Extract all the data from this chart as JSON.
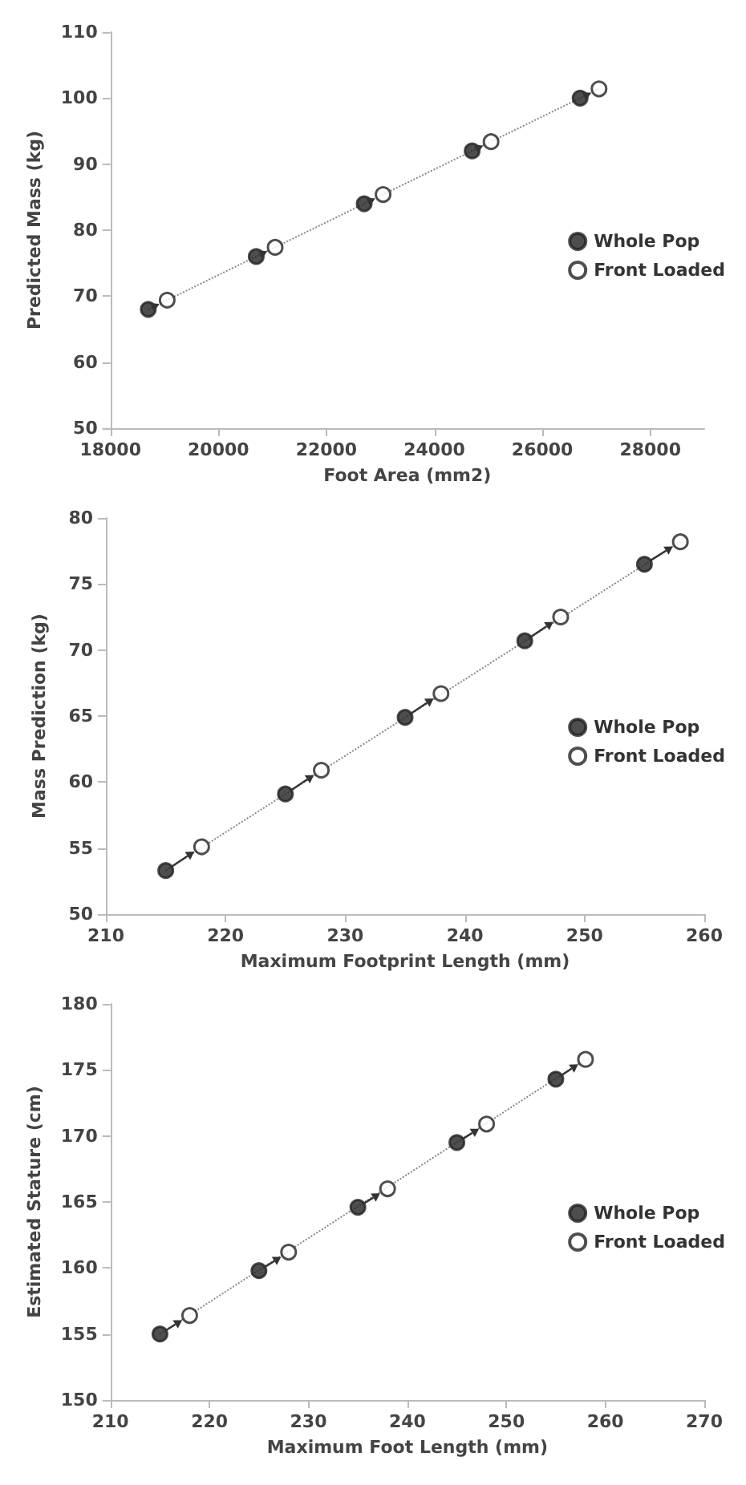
{
  "chart_data": [
    {
      "type": "scatter",
      "xlabel": "Foot Area (mm2)",
      "ylabel": "Predicted Mass (kg)",
      "xlim": [
        18000,
        29000
      ],
      "xticks": [
        18000,
        20000,
        22000,
        24000,
        26000,
        28000
      ],
      "ylim": [
        50,
        110
      ],
      "yticks": [
        50,
        60,
        70,
        80,
        90,
        100,
        110
      ],
      "grid": false,
      "legend": "right",
      "marker": "circle",
      "series": [
        {
          "name": "Whole Pop",
          "color": "#222222",
          "x": [
            18700,
            20700,
            22700,
            24700,
            26700
          ],
          "values": [
            68,
            76,
            84,
            92,
            100
          ]
        },
        {
          "name": "Front Loaded",
          "color": "#ffffff",
          "x": [
            19050,
            21050,
            23050,
            25050,
            27050
          ],
          "values": [
            69.4,
            77.4,
            85.4,
            93.4,
            101.4
          ]
        },
        {
          "type": "line",
          "color": "#888888",
          "line_style": "dotted",
          "marker": "none",
          "x": [
            18700,
            27050
          ],
          "values": [
            68,
            101.4
          ]
        }
      ]
    },
    {
      "type": "scatter",
      "xlabel": "Maximum Footprint Length (mm)",
      "ylabel": "Mass Prediction (kg)",
      "xlim": [
        210,
        260
      ],
      "xticks": [
        210,
        220,
        230,
        240,
        250,
        260
      ],
      "ylim": [
        50,
        80
      ],
      "yticks": [
        50,
        55,
        60,
        65,
        70,
        75,
        80
      ],
      "grid": false,
      "legend": "right",
      "marker": "circle",
      "series": [
        {
          "name": "Whole Pop",
          "color": "#222222",
          "x": [
            215,
            225,
            235,
            245,
            255
          ],
          "values": [
            53.3,
            59.1,
            64.9,
            70.7,
            76.5
          ]
        },
        {
          "name": "Front Loaded",
          "color": "#ffffff",
          "x": [
            218,
            228,
            238,
            248,
            258
          ],
          "values": [
            55.1,
            60.9,
            66.7,
            72.5,
            78.2
          ]
        },
        {
          "type": "line",
          "color": "#888888",
          "line_style": "dotted",
          "marker": "none",
          "x": [
            215,
            258
          ],
          "values": [
            53.3,
            78.2
          ]
        }
      ]
    },
    {
      "type": "scatter",
      "xlabel": "Maximum Foot Length (mm)",
      "ylabel": "Estimated Stature (cm)",
      "xlim": [
        210,
        270
      ],
      "xticks": [
        210,
        220,
        230,
        240,
        250,
        260,
        270
      ],
      "ylim": [
        150,
        180
      ],
      "yticks": [
        150,
        155,
        160,
        165,
        170,
        175,
        180
      ],
      "grid": false,
      "legend": "right",
      "marker": "circle",
      "series": [
        {
          "name": "Whole Pop",
          "color": "#222222",
          "x": [
            215,
            225,
            235,
            245,
            255
          ],
          "values": [
            155,
            159.8,
            164.6,
            169.5,
            174.3
          ]
        },
        {
          "name": "Front Loaded",
          "color": "#ffffff",
          "x": [
            218,
            228,
            238,
            248,
            258
          ],
          "values": [
            156.4,
            161.2,
            166,
            170.9,
            175.8
          ]
        },
        {
          "type": "line",
          "color": "#888888",
          "line_style": "dotted",
          "marker": "none",
          "x": [
            215,
            258
          ],
          "values": [
            155,
            175.8
          ]
        }
      ]
    }
  ]
}
